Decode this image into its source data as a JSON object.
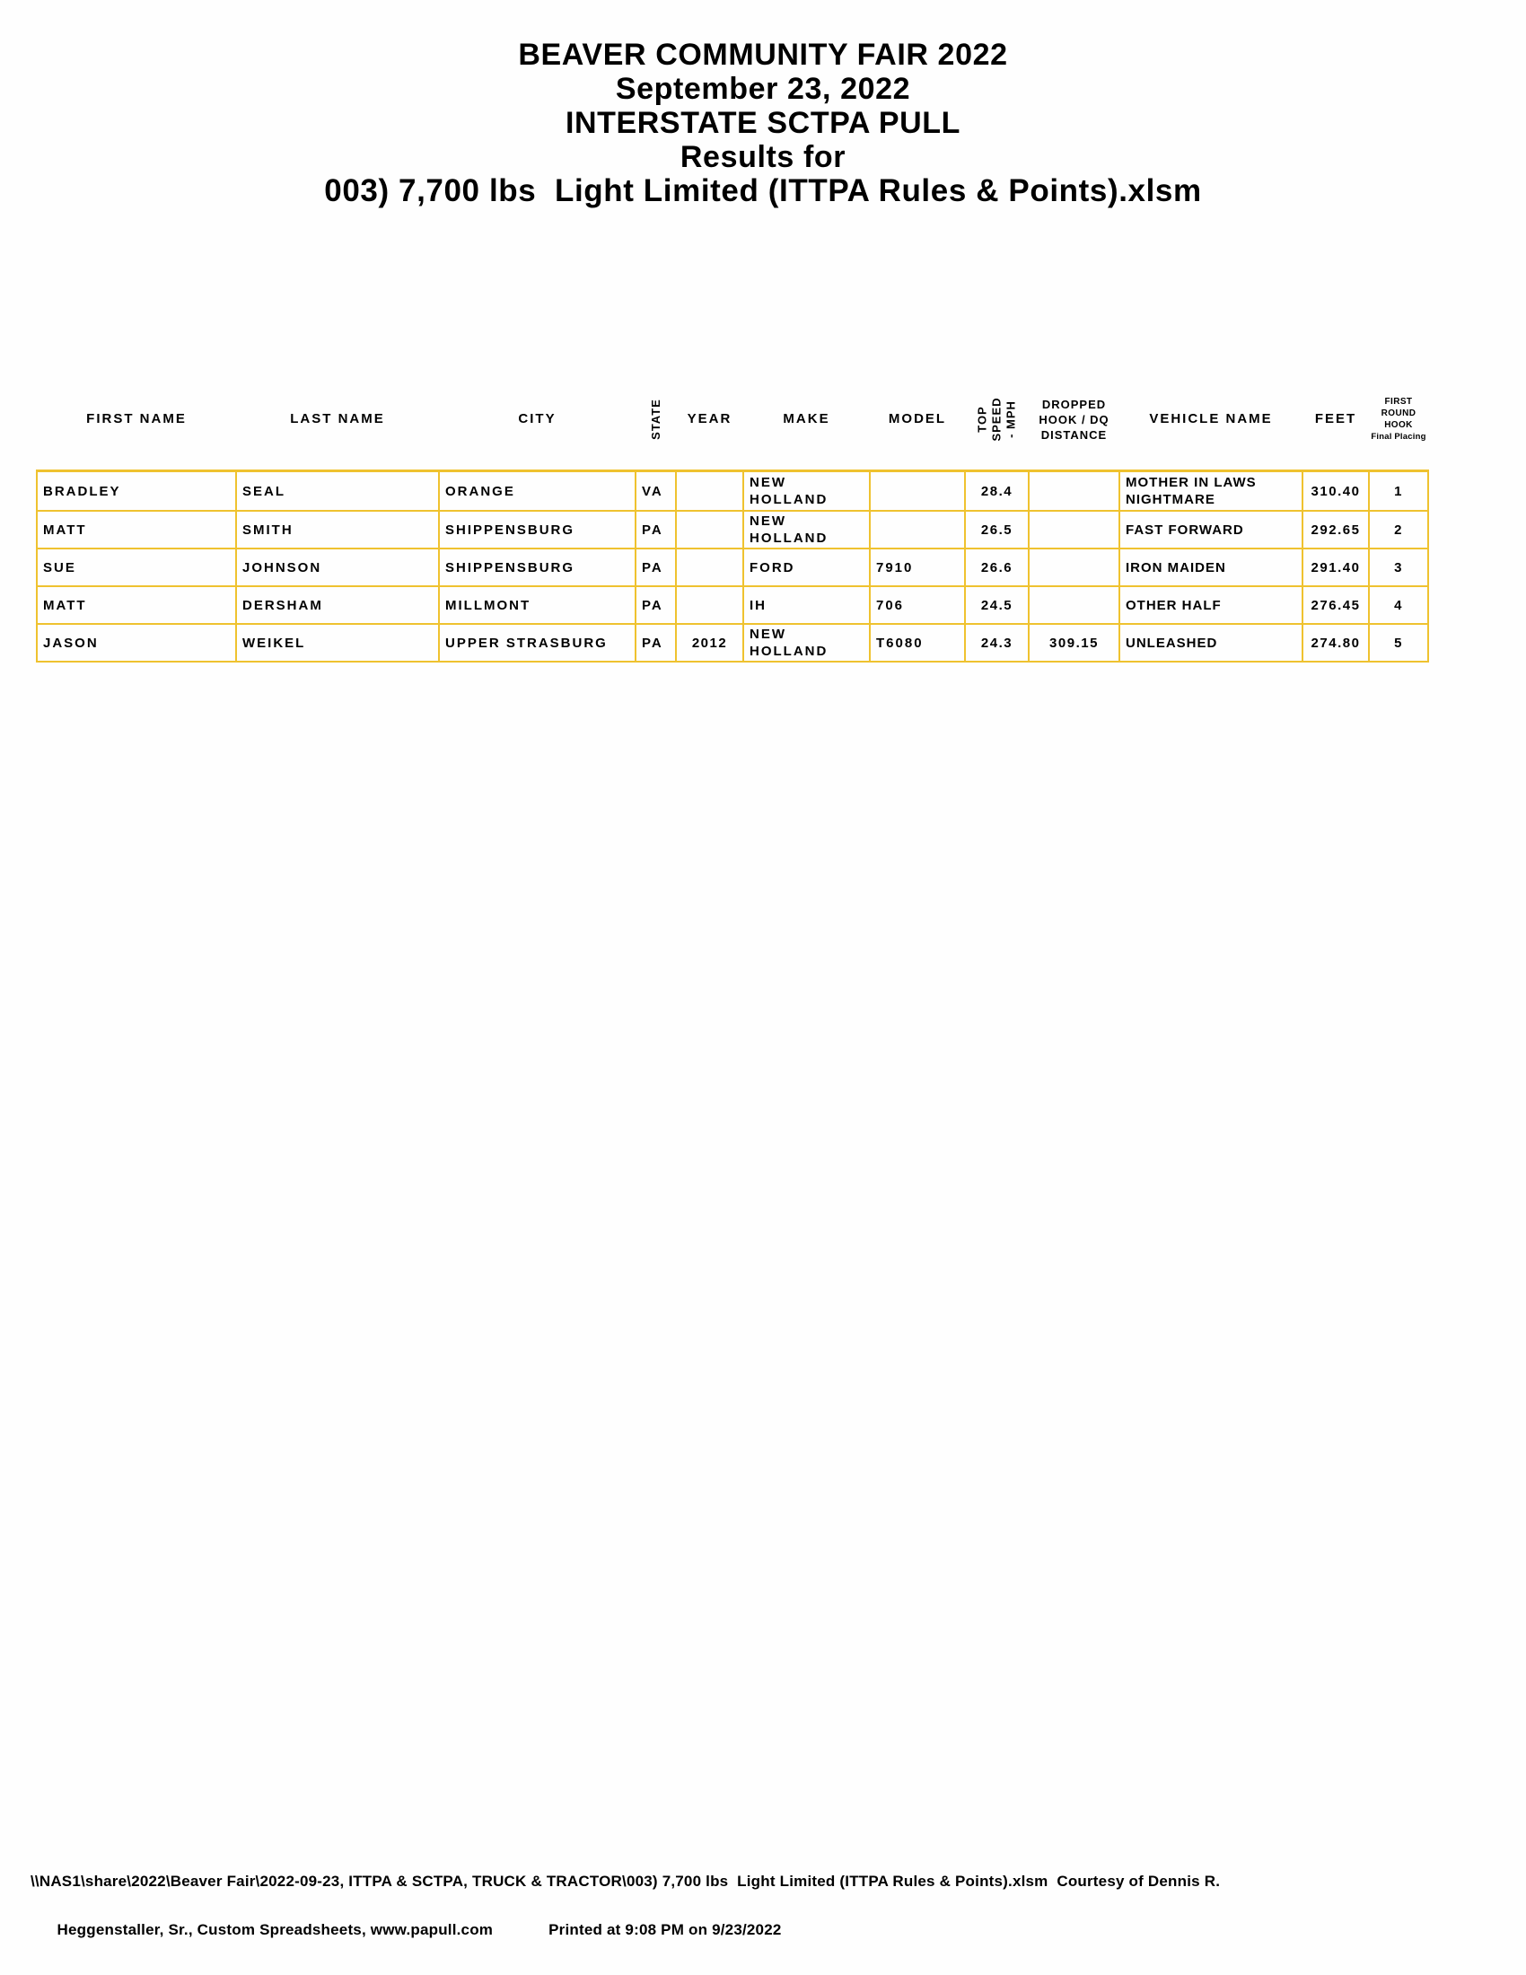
{
  "title": {
    "line1": "BEAVER COMMUNITY FAIR 2022",
    "line2": "September 23, 2022",
    "line3": "INTERSTATE SCTPA PULL",
    "line4": "Results for",
    "line5": "003) 7,700 lbs  Light Limited (ITTPA Rules & Points).xlsm"
  },
  "table": {
    "border_color": "#EFC22F",
    "columns": [
      {
        "key": "first_name",
        "label": "FIRST NAME"
      },
      {
        "key": "last_name",
        "label": "LAST NAME"
      },
      {
        "key": "city",
        "label": "CITY"
      },
      {
        "key": "state",
        "label": "STATE",
        "rotated": true
      },
      {
        "key": "year",
        "label": "YEAR"
      },
      {
        "key": "make",
        "label": "MAKE"
      },
      {
        "key": "model",
        "label": "MODEL"
      },
      {
        "key": "top_speed",
        "label": "TOP\nSPEED\n- MPH",
        "rotated": true
      },
      {
        "key": "dropped",
        "label": "DROPPED\nHOOK / DQ\nDISTANCE"
      },
      {
        "key": "vehicle",
        "label": "VEHICLE NAME"
      },
      {
        "key": "feet",
        "label": "FEET"
      },
      {
        "key": "placing",
        "label": "FIRST ROUND\nHOOK",
        "sublabel": "Final Placing"
      }
    ],
    "rows": [
      {
        "first_name": "BRADLEY",
        "last_name": "SEAL",
        "city": "ORANGE",
        "state": "VA",
        "year": "",
        "make": "NEW HOLLAND",
        "model": "",
        "top_speed": "28.4",
        "dropped": "",
        "vehicle": "MOTHER IN LAWS\nNIGHTMARE",
        "feet": "310.40",
        "placing": "1"
      },
      {
        "first_name": "MATT",
        "last_name": "SMITH",
        "city": "SHIPPENSBURG",
        "state": "PA",
        "year": "",
        "make": "NEW HOLLAND",
        "model": "",
        "top_speed": "26.5",
        "dropped": "",
        "vehicle": "FAST FORWARD",
        "feet": "292.65",
        "placing": "2"
      },
      {
        "first_name": "SUE",
        "last_name": "JOHNSON",
        "city": "SHIPPENSBURG",
        "state": "PA",
        "year": "",
        "make": "FORD",
        "model": "7910",
        "top_speed": "26.6",
        "dropped": "",
        "vehicle": "IRON MAIDEN",
        "feet": "291.40",
        "placing": "3"
      },
      {
        "first_name": "MATT",
        "last_name": "DERSHAM",
        "city": "MILLMONT",
        "state": "PA",
        "year": "",
        "make": "IH",
        "model": "706",
        "top_speed": "24.5",
        "dropped": "",
        "vehicle": "OTHER HALF",
        "feet": "276.45",
        "placing": "4"
      },
      {
        "first_name": "JASON",
        "last_name": "WEIKEL",
        "city": "UPPER STRASBURG",
        "state": "PA",
        "year": "2012",
        "make": "NEW HOLLAND",
        "model": "T6080",
        "top_speed": "24.3",
        "dropped": "309.15",
        "vehicle": "UNLEASHED",
        "feet": "274.80",
        "placing": "5"
      }
    ]
  },
  "footer": {
    "line1": "\\\\NAS1\\share\\2022\\Beaver Fair\\2022-09-23, ITTPA & SCTPA, TRUCK & TRACTOR\\003) 7,700 lbs  Light Limited (ITTPA Rules & Points).xlsm  Courtesy of Dennis R.",
    "line2_left": "Heggenstaller, Sr., Custom Spreadsheets, www.papull.com",
    "line2_right": "Printed at 9:08 PM on 9/23/2022"
  }
}
